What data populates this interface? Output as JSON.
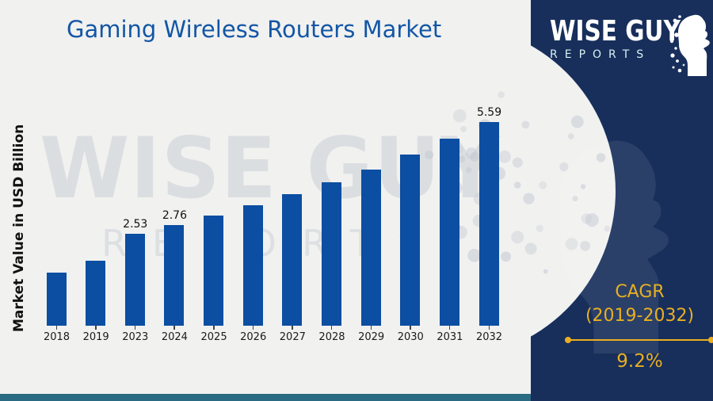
{
  "title": "Gaming Wireless Routers Market",
  "y_axis_label": "Market Value in USD Billion",
  "watermark": {
    "line1": "WISE GUY",
    "line2": "REPORTS"
  },
  "logo": {
    "line1": "WISE GUY",
    "line2": "REPORTS"
  },
  "cagr": {
    "line1": "CAGR",
    "line2": "(2019-2032)",
    "value": "9.2%"
  },
  "colors": {
    "bar_blue": "#0b4ea2",
    "title_blue": "#1356a5",
    "panel_navy": "#182f5c",
    "gold": "#e9af20",
    "bottom_strip_teal": "#2b6a83",
    "canvas_gray": "#f1f1f0",
    "watermark_gray": "#c7ccd4"
  },
  "chart_data": {
    "type": "bar",
    "title": "Gaming Wireless Routers Market",
    "xlabel": "",
    "ylabel": "Market Value in USD Billion",
    "categories": [
      "2018",
      "2019",
      "2023",
      "2024",
      "2025",
      "2026",
      "2027",
      "2028",
      "2029",
      "2030",
      "2031",
      "2032"
    ],
    "values": [
      1.45,
      1.78,
      2.53,
      2.76,
      3.02,
      3.3,
      3.6,
      3.93,
      4.29,
      4.69,
      5.12,
      5.59
    ],
    "point_labels": [
      "",
      "",
      "2.53",
      "2.76",
      "",
      "",
      "",
      "",
      "",
      "",
      "",
      "5.59"
    ],
    "ylim": [
      0,
      6
    ],
    "grid": false,
    "legend": "none",
    "bar_color": "#0b4ea2"
  }
}
